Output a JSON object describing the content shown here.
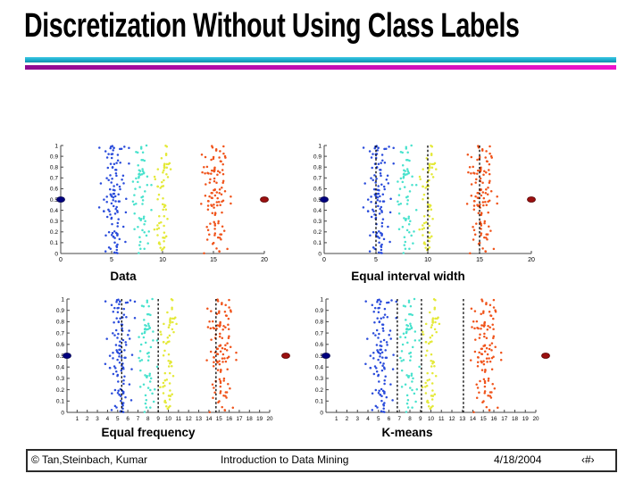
{
  "slide": {
    "title": "Discretization Without Using Class Labels"
  },
  "theme": {
    "background": "#ffffff",
    "title_color": "#000000",
    "divider_cyan": "#1fafd0",
    "divider_magenta_left": "#8e0b90",
    "divider_magenta_right": "#ee13cc",
    "axis_color": "#444444",
    "boundary_line_color": "#000000"
  },
  "chart_data": {
    "type": "scatter",
    "description": "Same one-dimensional random dataset (x = attribute value, y = random jitter 0-1) shown in four panels with different unsupervised discretization bin boundaries drawn as vertical dashed lines.",
    "shared": {
      "xlim": [
        0,
        21
      ],
      "ylim": [
        0,
        1
      ],
      "y_ticks": [
        0,
        0.1,
        0.2,
        0.3,
        0.4,
        0.5,
        0.6,
        0.7,
        0.8,
        0.9,
        1
      ],
      "grid": false,
      "legend": false,
      "clusters": [
        {
          "name": "cluster-blue",
          "color": "#2a4cdb",
          "x_center": 5.2,
          "x_sd": 0.62,
          "x_min": 3.7,
          "x_max": 6.7,
          "count": 110
        },
        {
          "name": "cluster-cyan",
          "color": "#49e2cd",
          "x_center": 8.0,
          "x_sd": 0.4,
          "x_min": 7.1,
          "x_max": 8.9,
          "count": 62
        },
        {
          "name": "cluster-yellow",
          "color": "#e4e938",
          "x_center": 10.0,
          "x_sd": 0.34,
          "x_min": 9.2,
          "x_max": 10.8,
          "count": 62
        },
        {
          "name": "cluster-orange",
          "color": "#f0531a",
          "x_center": 15.2,
          "x_sd": 0.64,
          "x_min": 13.8,
          "x_max": 16.7,
          "count": 110
        }
      ],
      "endpoint_markers": [
        {
          "name": "left-endpoint-dot",
          "x": 0,
          "y": 0.5,
          "color": "#00007e",
          "edge": "#000050"
        },
        {
          "name": "right-endpoint-dot",
          "x": 20,
          "y": 0.5,
          "color": "#9b1010",
          "edge": "#5a0000"
        }
      ]
    },
    "panels": [
      {
        "key": "data",
        "label": "Data",
        "x_ticks": [
          0,
          5,
          10,
          15,
          20
        ],
        "boundaries": []
      },
      {
        "key": "equal-interval-width",
        "label": "Equal interval width",
        "x_ticks": [
          0,
          5,
          10,
          15,
          20
        ],
        "boundaries": [
          5,
          10,
          15
        ]
      },
      {
        "key": "equal-frequency",
        "label": "Equal frequency",
        "x_ticks": [
          1,
          2,
          3,
          4,
          5,
          6,
          7,
          8,
          9,
          10,
          11,
          12,
          13,
          14,
          15,
          16,
          17,
          18,
          19,
          20
        ],
        "boundaries": [
          5.4,
          9,
          14.7
        ]
      },
      {
        "key": "k-means",
        "label": "K-means",
        "x_ticks": [
          1,
          2,
          3,
          4,
          5,
          6,
          7,
          8,
          9,
          10,
          11,
          12,
          13,
          14,
          15,
          16,
          17,
          18,
          19,
          20
        ],
        "boundaries": [
          6.8,
          9.1,
          13.1
        ]
      }
    ]
  },
  "footer": {
    "copyright": "© Tan,Steinbach, Kumar",
    "book": "Introduction to Data Mining",
    "date": "4/18/2004",
    "page": "‹#›"
  }
}
